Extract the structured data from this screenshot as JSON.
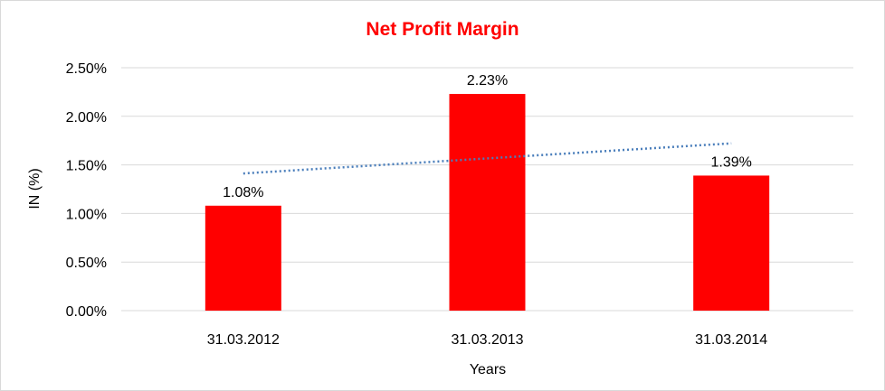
{
  "chart_data": {
    "type": "bar",
    "title": "Net Profit Margin",
    "xlabel": "Years",
    "ylabel": "IN (%)",
    "categories": [
      "31.03.2012",
      "31.03.2013",
      "31.03.2014"
    ],
    "values": [
      1.08,
      2.23,
      1.39
    ],
    "value_labels": [
      "1.08%",
      "2.23%",
      "1.39%"
    ],
    "ylim": [
      0,
      2.5
    ],
    "y_ticks": [
      0,
      0.5,
      1.0,
      1.5,
      2.0,
      2.5
    ],
    "y_tick_labels": [
      "0.00%",
      "0.50%",
      "1.00%",
      "1.50%",
      "2.00%",
      "2.50%"
    ],
    "trendline": {
      "type": "linear",
      "style": "dotted",
      "color": "#4a7ebb"
    },
    "grid": true,
    "legend": "none",
    "colors": {
      "bar": "#ff0000",
      "title": "#ff0000",
      "grid": "#d9d9d9",
      "trendline": "#4a7ebb"
    }
  }
}
